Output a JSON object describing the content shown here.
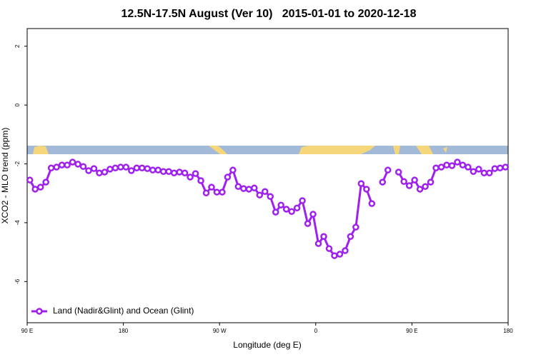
{
  "chart_data": {
    "type": "line",
    "title": "12.5N-17.5N August (Ver 10)   2015-01-01 to 2020-12-18",
    "x_label": "Longitude (deg E)",
    "y_label": "XCO2 - MLO trend (ppm)",
    "xlim": [
      90,
      540
    ],
    "ylim": [
      -7.4,
      2.6
    ],
    "xticks": [
      {
        "value": 90,
        "label": "90 E"
      },
      180,
      {
        "value": 270,
        "label": "90 W"
      },
      {
        "value": 360,
        "label": "0"
      },
      {
        "value": 450,
        "label": "90 E"
      },
      {
        "value": 540,
        "label": "180"
      }
    ],
    "yticks": [
      -6,
      -4,
      -2,
      0,
      2
    ],
    "legend": "bottom-left",
    "x": [
      92.5,
      97.5,
      102.5,
      107.5,
      112.5,
      117.5,
      122.5,
      127.5,
      132.5,
      137.5,
      142.5,
      147.5,
      152.5,
      157.5,
      162.5,
      167.5,
      172.5,
      177.5,
      182.5,
      187.5,
      192.5,
      197.5,
      202.5,
      207.5,
      212.5,
      217.5,
      222.5,
      227.5,
      232.5,
      237.5,
      242.5,
      247.5,
      252.5,
      257.5,
      262.5,
      267.5,
      272.5,
      277.5,
      282.5,
      287.5,
      292.5,
      297.5,
      302.5,
      307.5,
      312.5,
      317.5,
      322.5,
      327.5,
      332.5,
      337.5,
      342.5,
      347.5,
      352.5,
      357.5,
      362.5,
      367.5,
      372.5,
      377.5,
      382.5,
      387.5,
      392.5,
      397.5,
      402.5,
      407.5,
      412.5,
      417.5,
      422.5,
      427.5,
      432.5,
      437.5,
      442.5,
      447.5,
      452.5,
      457.5,
      462.5,
      467.5,
      472.5,
      477.5,
      482.5,
      487.5,
      492.5,
      497.5,
      502.5,
      507.5,
      512.5,
      517.5,
      522.5,
      527.5,
      532.5,
      537.5
    ],
    "series": [
      {
        "name": "Land (Nadir&Glint) and Ocean (Glint)",
        "color": "#a020f0",
        "values": [
          -2.55,
          -2.86,
          -2.79,
          -2.62,
          -2.14,
          -2.11,
          -2.04,
          -2.04,
          -1.94,
          -2.01,
          -2.09,
          -2.23,
          -2.16,
          -2.31,
          -2.28,
          -2.18,
          -2.14,
          -2.11,
          -2.11,
          -2.23,
          -2.14,
          -2.14,
          -2.16,
          -2.21,
          -2.21,
          -2.26,
          -2.26,
          -2.31,
          -2.28,
          -2.31,
          -2.45,
          -2.33,
          -2.57,
          -2.99,
          -2.79,
          -2.96,
          -2.96,
          -2.45,
          -2.21,
          -2.77,
          -2.84,
          -2.86,
          -2.82,
          -3.06,
          -2.94,
          -3.11,
          -3.64,
          -3.4,
          -3.54,
          -3.62,
          -3.5,
          -3.25,
          -4.03,
          -3.71,
          -4.71,
          -4.47,
          -4.88,
          -5.12,
          -5.07,
          -4.95,
          -4.47,
          -4.15,
          -2.67,
          -2.86,
          -3.35,
          null,
          -2.62,
          -2.21,
          null,
          -2.28,
          -2.6,
          -2.74,
          -2.55,
          -2.86,
          -2.77,
          -2.62,
          -2.14,
          -2.11,
          -2.04,
          -2.06,
          -1.94,
          -2.04,
          -2.11,
          -2.26,
          -2.18,
          -2.31,
          -2.31,
          -2.16,
          -2.14,
          -2.11
        ]
      }
    ]
  }
}
